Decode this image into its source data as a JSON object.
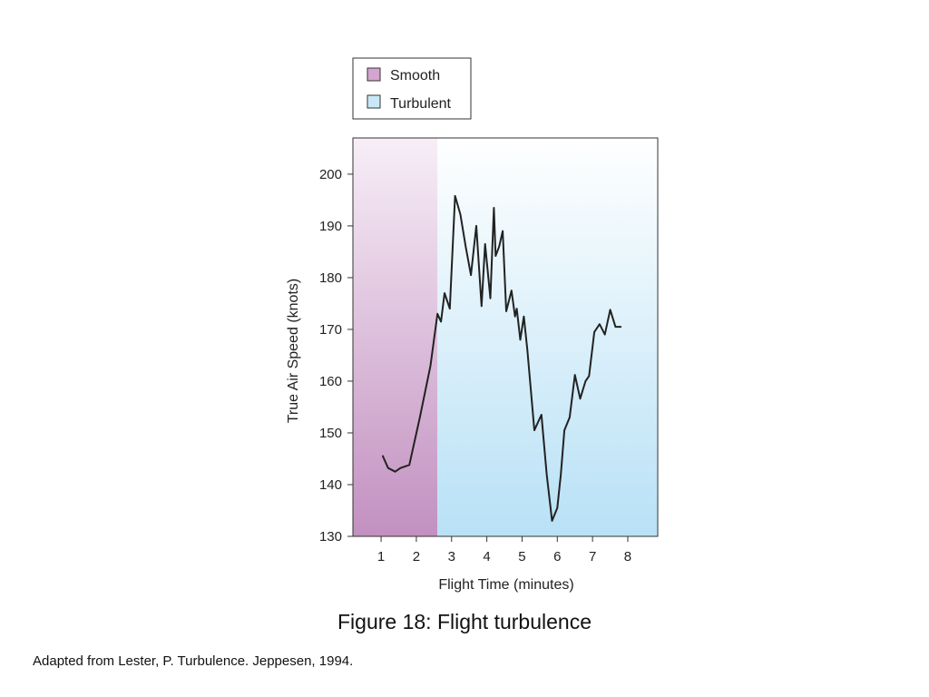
{
  "caption": "Figure 18: Flight turbulence",
  "source": "Adapted from Lester, P. Turbulence. Jeppesen, 1994.",
  "chart_data": {
    "type": "line",
    "xlabel": "Flight Time (minutes)",
    "ylabel": "True Air Speed (knots)",
    "xlim": [
      0.2,
      8.85
    ],
    "ylim": [
      130,
      207
    ],
    "xticks": [
      "1",
      "2",
      "3",
      "4",
      "5",
      "6",
      "7",
      "8"
    ],
    "yticks": [
      "130",
      "140",
      "150",
      "160",
      "170",
      "180",
      "190",
      "200"
    ],
    "legend": {
      "position": "top",
      "entries": [
        {
          "label": "Smooth",
          "color": "#d4a5cf"
        },
        {
          "label": "Turbulent",
          "color": "#c8e8f7"
        }
      ]
    },
    "regions": [
      {
        "label": "Smooth",
        "x_start": 0.2,
        "x_end": 2.6
      },
      {
        "label": "Turbulent",
        "x_start": 2.6,
        "x_end": 8.85
      }
    ],
    "series": [
      {
        "color": "#222222",
        "x": [
          1.05,
          1.2,
          1.4,
          1.55,
          1.8,
          2.1,
          2.4,
          2.6,
          2.7,
          2.8,
          2.95,
          3.1,
          3.25,
          3.4,
          3.55,
          3.7,
          3.85,
          3.95,
          4.1,
          4.2,
          4.25,
          4.35,
          4.45,
          4.55,
          4.7,
          4.8,
          4.85,
          4.95,
          5.05,
          5.15,
          5.35,
          5.55,
          5.7,
          5.85,
          6.0,
          6.1,
          6.2,
          6.35,
          6.5,
          6.65,
          6.8,
          6.9,
          7.05,
          7.2,
          7.35,
          7.5,
          7.65,
          7.8
        ],
        "y": [
          145.5,
          143.2,
          142.5,
          143.2,
          143.8,
          153,
          163,
          173,
          171.5,
          177,
          174,
          195.8,
          192.2,
          186,
          180.5,
          190,
          174.5,
          186.5,
          176,
          193.5,
          184.2,
          186,
          189,
          173.5,
          177.5,
          172.5,
          174,
          168,
          172.5,
          166,
          150.5,
          153.5,
          142,
          133,
          135.5,
          142,
          150.5,
          153,
          161.2,
          156.6,
          160,
          161,
          169.5,
          171,
          169,
          173.8,
          170.5,
          170.5
        ]
      }
    ]
  }
}
